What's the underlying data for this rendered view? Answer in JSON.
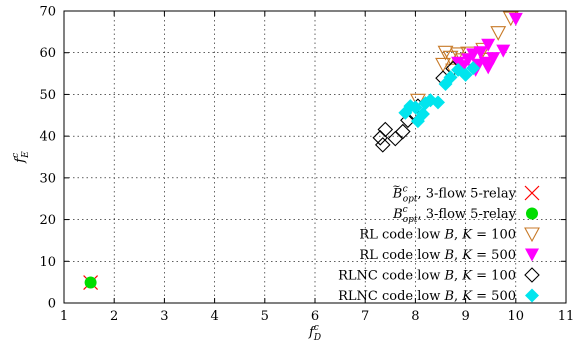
{
  "chart_data": {
    "type": "scatter",
    "title": "",
    "xlabel_base": "f",
    "xlabel_sup": "c",
    "xlabel_sub": "D",
    "ylabel_base": "f",
    "ylabel_sup": "c",
    "ylabel_sub": "E",
    "xlim": [
      1,
      11
    ],
    "ylim": [
      0,
      70
    ],
    "xticks": [
      1,
      2,
      3,
      4,
      5,
      6,
      7,
      8,
      9,
      10,
      11
    ],
    "yticks": [
      0,
      10,
      20,
      30,
      40,
      50,
      60,
      70
    ],
    "grid": true,
    "legend_position": "bottom-right",
    "series": [
      {
        "name_parts": [
          [
            "B",
            "script"
          ],
          [
            "~",
            "accent"
          ],
          [
            "c",
            "sup"
          ],
          [
            "opt",
            "sub"
          ],
          [
            ", 3-flow 5-relay",
            "plain"
          ]
        ],
        "marker": "x",
        "color": "#ff0000",
        "points": [
          [
            1.53,
            4.9
          ]
        ]
      },
      {
        "name_parts": [
          [
            "B",
            "script"
          ],
          [
            "c",
            "sup"
          ],
          [
            "opt",
            "sub"
          ],
          [
            ", 3-flow 5-relay",
            "plain"
          ]
        ],
        "marker": "circle",
        "color": "#00dd00",
        "points": [
          [
            1.53,
            4.9
          ]
        ]
      },
      {
        "name_parts": [
          [
            "RL code low ",
            "plain"
          ],
          [
            "B",
            "script"
          ],
          [
            ", ",
            "plain"
          ],
          [
            "K",
            "italic"
          ],
          [
            " = 100",
            "plain"
          ]
        ],
        "marker": "triangle-down-open",
        "color": "#c87a28",
        "points": [
          [
            8.05,
            48.6
          ],
          [
            8.7,
            58.9
          ],
          [
            8.55,
            57.2
          ],
          [
            8.85,
            59.7
          ],
          [
            8.95,
            58.3
          ],
          [
            9.05,
            59.9
          ],
          [
            8.75,
            55.8
          ],
          [
            9.45,
            58.4
          ],
          [
            9.35,
            60.8
          ],
          [
            9.65,
            64.8
          ],
          [
            9.9,
            68.3
          ],
          [
            8.6,
            60.1
          ]
        ]
      },
      {
        "name_parts": [
          [
            "RL code low ",
            "plain"
          ],
          [
            "B",
            "script"
          ],
          [
            ", ",
            "plain"
          ],
          [
            "K",
            "italic"
          ],
          [
            " = 500",
            "plain"
          ]
        ],
        "marker": "triangle-down",
        "color": "#ff00ff",
        "points": [
          [
            10.0,
            68.1
          ],
          [
            9.75,
            60.5
          ],
          [
            9.45,
            61.9
          ],
          [
            9.3,
            60.1
          ],
          [
            9.15,
            59.6
          ],
          [
            9.05,
            58.4
          ],
          [
            9.4,
            57.6
          ],
          [
            9.45,
            56.5
          ],
          [
            9.2,
            55.9
          ],
          [
            8.95,
            56.8
          ],
          [
            9.55,
            58.7
          ],
          [
            9.25,
            57.1
          ],
          [
            8.85,
            57.6
          ]
        ]
      },
      {
        "name_parts": [
          [
            "RLNC code low ",
            "plain"
          ],
          [
            "B",
            "script"
          ],
          [
            ", ",
            "plain"
          ],
          [
            "K",
            "italic"
          ],
          [
            " = 100",
            "plain"
          ]
        ],
        "marker": "diamond-open",
        "color": "#000000",
        "points": [
          [
            7.35,
            37.9
          ],
          [
            7.3,
            39.6
          ],
          [
            7.4,
            41.6
          ],
          [
            7.75,
            41.1
          ],
          [
            7.85,
            43.8
          ],
          [
            7.95,
            45.6
          ],
          [
            8.05,
            47.2
          ],
          [
            8.55,
            53.9
          ],
          [
            8.75,
            56.2
          ],
          [
            7.6,
            39.4
          ]
        ]
      },
      {
        "name_parts": [
          [
            "RLNC code low ",
            "plain"
          ],
          [
            "B",
            "script"
          ],
          [
            ", ",
            "plain"
          ],
          [
            "K",
            "italic"
          ],
          [
            " = 500",
            "plain"
          ]
        ],
        "marker": "diamond",
        "color": "#00e5ee",
        "points": [
          [
            7.8,
            45.6
          ],
          [
            7.9,
            47.2
          ],
          [
            8.05,
            43.6
          ],
          [
            8.15,
            45.3
          ],
          [
            8.3,
            48.6
          ],
          [
            8.45,
            48.1
          ],
          [
            8.6,
            52.5
          ],
          [
            8.7,
            54.1
          ],
          [
            8.85,
            55.9
          ],
          [
            9.0,
            54.7
          ],
          [
            9.15,
            56.3
          ],
          [
            8.0,
            46.9
          ],
          [
            8.2,
            47.9
          ]
        ]
      }
    ]
  }
}
